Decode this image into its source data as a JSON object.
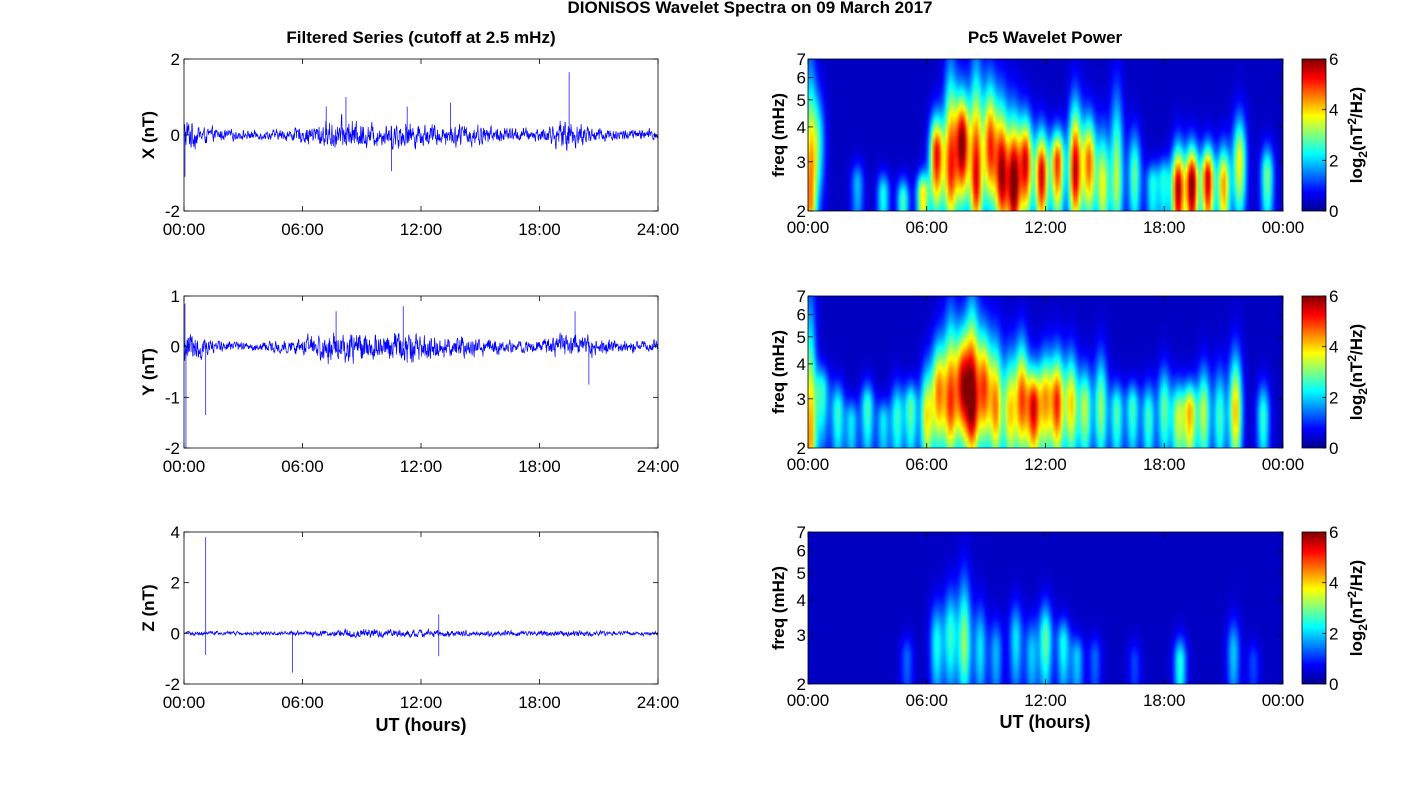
{
  "figure": {
    "title": "DIONISOS Wavelet Spectra on 09 March 2017",
    "left_title": "Filtered Series (cutoff at 2.5 mHz)",
    "right_title": "Pc5 Wavelet Power",
    "xlabel": "UT (hours)"
  },
  "chart_data": [
    {
      "type": "line",
      "panel": "X-series",
      "ylabel": "X (nT)",
      "xticks": [
        "00:00",
        "06:00",
        "12:00",
        "18:00",
        "24:00"
      ],
      "xlim": [
        0,
        24
      ],
      "ylim": [
        -2,
        2
      ],
      "yticks": [
        "2",
        "0",
        "-2"
      ],
      "color": "#0000ff",
      "envelope": [
        [
          0,
          0.8
        ],
        [
          1,
          0.35
        ],
        [
          2,
          0.25
        ],
        [
          3,
          0.2
        ],
        [
          4,
          0.2
        ],
        [
          5,
          0.25
        ],
        [
          6,
          0.35
        ],
        [
          7,
          0.55
        ],
        [
          8,
          0.7
        ],
        [
          9,
          0.6
        ],
        [
          10,
          0.45
        ],
        [
          11,
          0.65
        ],
        [
          12,
          0.5
        ],
        [
          13,
          0.45
        ],
        [
          14,
          0.5
        ],
        [
          15,
          0.45
        ],
        [
          16,
          0.35
        ],
        [
          17,
          0.3
        ],
        [
          18,
          0.3
        ],
        [
          19,
          0.55
        ],
        [
          19.5,
          0.7
        ],
        [
          20,
          0.5
        ],
        [
          21,
          0.35
        ],
        [
          22,
          0.25
        ],
        [
          23,
          0.25
        ],
        [
          24,
          0.25
        ]
      ],
      "spikes": [
        [
          19.5,
          1.65
        ],
        [
          0.05,
          -1.1
        ],
        [
          7.2,
          0.75
        ],
        [
          8.2,
          1.0
        ],
        [
          11.3,
          0.75
        ],
        [
          13.5,
          0.85
        ],
        [
          10.5,
          -0.95
        ]
      ]
    },
    {
      "type": "line",
      "panel": "Y-series",
      "ylabel": "Y (nT)",
      "xticks": [
        "00:00",
        "06:00",
        "12:00",
        "18:00",
        "24:00"
      ],
      "xlim": [
        0,
        24
      ],
      "ylim": [
        -2,
        1
      ],
      "yticks": [
        "1",
        "0",
        "-1",
        "-2"
      ],
      "color": "#0000ff",
      "envelope": [
        [
          0,
          0.7
        ],
        [
          1,
          0.3
        ],
        [
          2,
          0.2
        ],
        [
          3,
          0.15
        ],
        [
          4,
          0.15
        ],
        [
          5,
          0.2
        ],
        [
          6,
          0.3
        ],
        [
          7,
          0.45
        ],
        [
          8,
          0.55
        ],
        [
          9,
          0.5
        ],
        [
          10,
          0.4
        ],
        [
          11,
          0.55
        ],
        [
          12,
          0.45
        ],
        [
          13,
          0.35
        ],
        [
          14,
          0.35
        ],
        [
          15,
          0.3
        ],
        [
          16,
          0.25
        ],
        [
          17,
          0.2
        ],
        [
          18,
          0.2
        ],
        [
          19,
          0.35
        ],
        [
          20,
          0.4
        ],
        [
          21,
          0.3
        ],
        [
          22,
          0.2
        ],
        [
          23,
          0.2
        ],
        [
          24,
          0.2
        ]
      ],
      "spikes": [
        [
          0.1,
          -2.0
        ],
        [
          1.1,
          -1.35
        ],
        [
          0.05,
          0.85
        ],
        [
          11.1,
          0.8
        ],
        [
          19.8,
          0.7
        ],
        [
          7.7,
          0.7
        ],
        [
          20.5,
          -0.75
        ]
      ]
    },
    {
      "type": "line",
      "panel": "Z-series",
      "ylabel": "Z (nT)",
      "xticks": [
        "00:00",
        "06:00",
        "12:00",
        "18:00",
        "24:00"
      ],
      "xlim": [
        0,
        24
      ],
      "ylim": [
        -2,
        4
      ],
      "yticks": [
        "4",
        "2",
        "0",
        "-2"
      ],
      "color": "#0000ff",
      "envelope": [
        [
          0,
          0.15
        ],
        [
          2,
          0.12
        ],
        [
          4,
          0.12
        ],
        [
          6,
          0.15
        ],
        [
          7,
          0.2
        ],
        [
          8,
          0.28
        ],
        [
          9,
          0.28
        ],
        [
          10,
          0.25
        ],
        [
          11,
          0.25
        ],
        [
          12,
          0.25
        ],
        [
          13,
          0.22
        ],
        [
          14,
          0.2
        ],
        [
          16,
          0.18
        ],
        [
          18,
          0.18
        ],
        [
          20,
          0.2
        ],
        [
          22,
          0.15
        ],
        [
          24,
          0.12
        ]
      ],
      "spikes": [
        [
          1.1,
          3.8
        ],
        [
          1.1,
          -0.85
        ],
        [
          5.5,
          -1.55
        ],
        [
          12.9,
          0.75
        ],
        [
          12.9,
          -0.9
        ]
      ]
    },
    {
      "type": "heatmap",
      "panel": "X-power",
      "ylabel": "freq (mHz)",
      "colorbar_label": "log2(nT2/Hz)",
      "xticks": [
        "00:00",
        "06:00",
        "12:00",
        "18:00",
        "00:00"
      ],
      "yticks": [
        "7",
        "6",
        "5",
        "4",
        "3",
        "2"
      ],
      "ylim": [
        2,
        7
      ],
      "yscale": "log",
      "clim": [
        0,
        6
      ],
      "cticks": [
        "6",
        "4",
        "2",
        "0"
      ],
      "colormap": "jet",
      "blobs": [
        [
          0.1,
          2.1,
          1.8,
          6.5,
          4.0
        ],
        [
          0.5,
          3.5,
          1.0,
          5.5,
          2.0
        ],
        [
          2.5,
          2.5,
          0.8,
          3.0,
          1.5
        ],
        [
          3.8,
          2.3,
          0.8,
          2.6,
          2.0
        ],
        [
          4.8,
          2.2,
          0.7,
          2.5,
          2.3
        ],
        [
          5.8,
          2.3,
          0.8,
          2.8,
          3.5
        ],
        [
          6.5,
          3.2,
          1.0,
          4.5,
          5.0
        ],
        [
          7.2,
          2.8,
          1.0,
          6.5,
          4.5
        ],
        [
          7.8,
          3.5,
          1.1,
          5.5,
          5.6
        ],
        [
          8.5,
          2.6,
          0.9,
          6.5,
          5.0
        ],
        [
          9.2,
          3.4,
          1.0,
          6.0,
          4.6
        ],
        [
          9.8,
          2.7,
          0.9,
          5.0,
          5.3
        ],
        [
          10.4,
          2.5,
          0.9,
          4.5,
          5.7
        ],
        [
          11.0,
          3.0,
          0.9,
          4.5,
          5.0
        ],
        [
          11.8,
          2.7,
          0.9,
          4.0,
          5.2
        ],
        [
          12.6,
          3.0,
          1.0,
          4.0,
          4.7
        ],
        [
          13.5,
          2.8,
          0.9,
          5.0,
          5.3
        ],
        [
          14.2,
          3.0,
          0.8,
          4.5,
          4.3
        ],
        [
          14.9,
          2.5,
          0.8,
          4.0,
          3.3
        ],
        [
          15.6,
          2.6,
          0.8,
          5.5,
          3.0
        ],
        [
          16.5,
          2.7,
          0.7,
          4.0,
          2.5
        ],
        [
          17.4,
          2.5,
          0.7,
          3.0,
          2.0
        ],
        [
          18.0,
          2.6,
          0.7,
          3.0,
          2.0
        ],
        [
          18.7,
          2.4,
          1.1,
          3.5,
          5.4
        ],
        [
          19.4,
          2.5,
          1.1,
          3.5,
          5.8
        ],
        [
          20.2,
          2.6,
          1.0,
          3.5,
          5.2
        ],
        [
          21.0,
          2.5,
          0.9,
          3.5,
          4.0
        ],
        [
          21.8,
          3.0,
          0.8,
          4.5,
          3.4
        ],
        [
          23.2,
          2.7,
          0.8,
          3.5,
          2.6
        ]
      ]
    },
    {
      "type": "heatmap",
      "panel": "Y-power",
      "ylabel": "freq (mHz)",
      "colorbar_label": "log2(nT2/Hz)",
      "xticks": [
        "00:00",
        "06:00",
        "12:00",
        "18:00",
        "00:00"
      ],
      "yticks": [
        "7",
        "6",
        "5",
        "4",
        "3",
        "2"
      ],
      "ylim": [
        2,
        7
      ],
      "yscale": "log",
      "clim": [
        0,
        6
      ],
      "cticks": [
        "6",
        "4",
        "2",
        "0"
      ],
      "colormap": "jet",
      "blobs": [
        [
          0.1,
          2.1,
          1.8,
          6.5,
          4.0
        ],
        [
          0.7,
          3.2,
          0.9,
          4.0,
          2.2
        ],
        [
          1.5,
          2.7,
          0.8,
          3.5,
          2.2
        ],
        [
          2.2,
          2.5,
          0.8,
          3.0,
          1.8
        ],
        [
          3.0,
          2.8,
          0.8,
          3.5,
          2.3
        ],
        [
          3.8,
          2.5,
          0.8,
          3.0,
          1.8
        ],
        [
          4.5,
          2.6,
          0.8,
          3.5,
          2.2
        ],
        [
          5.2,
          2.8,
          0.8,
          3.5,
          2.5
        ],
        [
          6.0,
          2.6,
          0.9,
          4.0,
          3.4
        ],
        [
          6.6,
          3.2,
          1.0,
          5.0,
          4.0
        ],
        [
          7.2,
          2.9,
          1.0,
          6.0,
          4.3
        ],
        [
          7.8,
          3.4,
          1.0,
          5.5,
          4.7
        ],
        [
          8.3,
          2.9,
          1.0,
          6.5,
          5.3
        ],
        [
          8.9,
          3.3,
          0.9,
          5.5,
          4.3
        ],
        [
          9.5,
          2.8,
          0.9,
          5.0,
          4.0
        ],
        [
          10.2,
          2.7,
          0.9,
          4.5,
          3.5
        ],
        [
          10.8,
          3.0,
          1.0,
          5.0,
          4.3
        ],
        [
          11.4,
          2.8,
          0.9,
          4.0,
          4.9
        ],
        [
          12.0,
          3.0,
          0.9,
          4.5,
          3.7
        ],
        [
          12.6,
          2.9,
          0.9,
          4.5,
          4.6
        ],
        [
          13.3,
          2.9,
          0.9,
          4.5,
          3.6
        ],
        [
          14.0,
          2.8,
          0.8,
          4.0,
          3.0
        ],
        [
          14.8,
          2.8,
          0.8,
          4.5,
          2.8
        ],
        [
          15.6,
          2.7,
          0.8,
          3.5,
          2.4
        ],
        [
          16.4,
          2.8,
          0.8,
          3.5,
          2.3
        ],
        [
          17.2,
          2.6,
          0.8,
          3.5,
          2.3
        ],
        [
          18.0,
          2.8,
          0.8,
          4.0,
          2.5
        ],
        [
          18.7,
          2.6,
          0.9,
          3.5,
          3.0
        ],
        [
          19.3,
          2.7,
          0.9,
          3.5,
          3.8
        ],
        [
          20.0,
          2.7,
          0.8,
          4.0,
          3.0
        ],
        [
          20.8,
          2.6,
          0.8,
          4.0,
          2.3
        ],
        [
          21.6,
          2.7,
          0.9,
          4.5,
          3.8
        ],
        [
          23.0,
          2.6,
          0.8,
          3.5,
          2.2
        ]
      ]
    },
    {
      "type": "heatmap",
      "panel": "Z-power",
      "ylabel": "freq (mHz)",
      "colorbar_label": "log2(nT2/Hz)",
      "xticks": [
        "00:00",
        "06:00",
        "12:00",
        "18:00",
        "00:00"
      ],
      "yticks": [
        "7",
        "6",
        "5",
        "4",
        "3",
        "2"
      ],
      "ylim": [
        2,
        7
      ],
      "yscale": "log",
      "clim": [
        0,
        6
      ],
      "cticks": [
        "6",
        "4",
        "2",
        "0"
      ],
      "colormap": "jet",
      "blobs": [
        [
          5.0,
          2.5,
          0.6,
          3.0,
          1.0
        ],
        [
          6.5,
          2.8,
          0.8,
          4.0,
          2.0
        ],
        [
          7.2,
          3.0,
          0.8,
          4.5,
          2.2
        ],
        [
          7.9,
          2.8,
          0.8,
          5.0,
          2.8
        ],
        [
          8.7,
          2.7,
          0.7,
          4.0,
          1.8
        ],
        [
          9.5,
          2.6,
          0.7,
          3.5,
          1.5
        ],
        [
          10.5,
          2.9,
          0.7,
          4.0,
          1.8
        ],
        [
          11.3,
          2.6,
          0.7,
          3.5,
          1.6
        ],
        [
          12.0,
          2.9,
          0.8,
          4.0,
          2.5
        ],
        [
          12.9,
          2.8,
          0.7,
          3.5,
          2.0
        ],
        [
          13.6,
          2.5,
          0.7,
          3.0,
          1.6
        ],
        [
          14.5,
          2.5,
          0.6,
          3.0,
          1.0
        ],
        [
          16.5,
          2.4,
          0.6,
          2.5,
          0.8
        ],
        [
          18.8,
          2.4,
          0.8,
          3.0,
          2.1
        ],
        [
          21.5,
          2.6,
          0.7,
          3.5,
          1.6
        ],
        [
          22.5,
          2.4,
          0.6,
          2.5,
          0.8
        ]
      ]
    }
  ]
}
